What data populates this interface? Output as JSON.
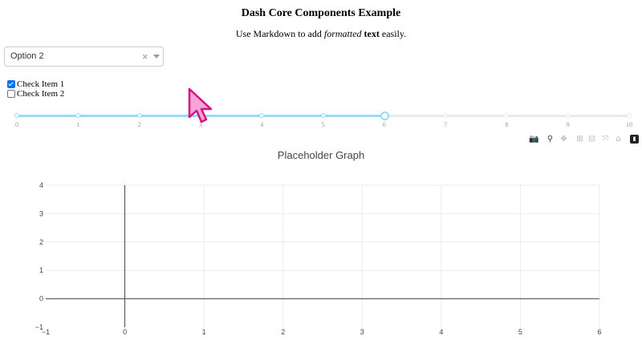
{
  "header": {
    "title": "Dash Core Components Example",
    "subtitle_pre": "Use Markdown to add ",
    "subtitle_em": "formatted",
    "subtitle_strong": "text",
    "subtitle_post": " easily."
  },
  "dropdown": {
    "value": "Option 2",
    "clear": "×"
  },
  "checklist": [
    {
      "label": "Check Item 1",
      "checked": true
    },
    {
      "label": "Check Item 2",
      "checked": false
    }
  ],
  "slider": {
    "min": 0,
    "max": 10,
    "value": 6,
    "marks": [
      "0",
      "1",
      "2",
      "3",
      "4",
      "5",
      "6",
      "7",
      "8",
      "9",
      "10"
    ]
  },
  "modebar": [
    "camera-icon",
    "zoom-icon",
    "pan-icon",
    "zoom-in-icon",
    "zoom-out-icon",
    "autoscale-icon",
    "reset-axes-icon",
    "plotly-logo-icon"
  ],
  "graph": {
    "title": "Placeholder Graph"
  },
  "chart_data": {
    "type": "line",
    "title": "Placeholder Graph",
    "xlabel": "",
    "ylabel": "",
    "xlim": [
      -1,
      6
    ],
    "ylim": [
      -1,
      4
    ],
    "xticks": [
      "−1",
      "0",
      "1",
      "2",
      "3",
      "4",
      "5",
      "6"
    ],
    "yticks": [
      "−1",
      "0",
      "1",
      "2",
      "3",
      "4"
    ],
    "series": [],
    "grid": true
  }
}
